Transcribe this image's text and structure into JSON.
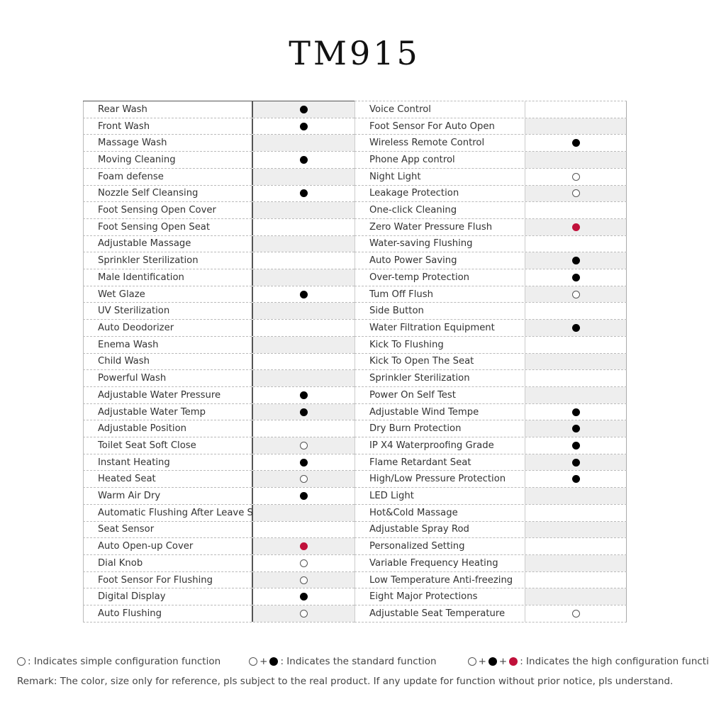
{
  "title": "TM915",
  "colors": {
    "filled": "#000000",
    "open": "#ffffff",
    "high": "#c0103a"
  },
  "left_column": [
    {
      "label": "Rear Wash",
      "mark": "filled"
    },
    {
      "label": "Front Wash",
      "mark": "filled"
    },
    {
      "label": "Massage Wash",
      "mark": ""
    },
    {
      "label": "Moving Cleaning",
      "mark": "filled"
    },
    {
      "label": "Foam defense",
      "mark": ""
    },
    {
      "label": "Nozzle Self Cleansing",
      "mark": "filled"
    },
    {
      "label": "Foot Sensing Open Cover",
      "mark": ""
    },
    {
      "label": "Foot Sensing Open Seat",
      "mark": ""
    },
    {
      "label": "Adjustable Massage",
      "mark": ""
    },
    {
      "label": "Sprinkler Sterilization",
      "mark": ""
    },
    {
      "label": "Male Identification",
      "mark": ""
    },
    {
      "label": "Wet Glaze",
      "mark": "filled"
    },
    {
      "label": "UV Sterilization",
      "mark": ""
    },
    {
      "label": "Auto Deodorizer",
      "mark": ""
    },
    {
      "label": "Enema Wash",
      "mark": ""
    },
    {
      "label": "Child Wash",
      "mark": ""
    },
    {
      "label": "Powerful Wash",
      "mark": ""
    },
    {
      "label": "Adjustable Water Pressure",
      "mark": "filled"
    },
    {
      "label": "Adjustable Water Temp",
      "mark": "filled"
    },
    {
      "label": "Adjustable Position",
      "mark": ""
    },
    {
      "label": "Toilet Seat Soft Close",
      "mark": "open"
    },
    {
      "label": "Instant Heating",
      "mark": "filled"
    },
    {
      "label": "Heated Seat",
      "mark": "open"
    },
    {
      "label": "Warm Air Dry",
      "mark": "filled"
    },
    {
      "label": "Automatic Flushing After Leave Seat",
      "mark": ""
    },
    {
      "label": "Seat Sensor",
      "mark": ""
    },
    {
      "label": "Auto Open-up Cover",
      "mark": "red"
    },
    {
      "label": "Dial Knob",
      "mark": "open"
    },
    {
      "label": "Foot Sensor For Flushing",
      "mark": "open"
    },
    {
      "label": "Digital Display",
      "mark": "filled"
    },
    {
      "label": "Auto Flushing",
      "mark": "open"
    }
  ],
  "right_column": [
    {
      "label": "Voice Control",
      "mark": ""
    },
    {
      "label": "Foot Sensor For Auto Open",
      "mark": ""
    },
    {
      "label": "Wireless Remote Control",
      "mark": "filled"
    },
    {
      "label": "Phone App control",
      "mark": ""
    },
    {
      "label": "Night Light",
      "mark": "open"
    },
    {
      "label": "Leakage Protection",
      "mark": "open"
    },
    {
      "label": "One-click Cleaning",
      "mark": ""
    },
    {
      "label": "Zero Water Pressure Flush",
      "mark": "red"
    },
    {
      "label": "Water-saving Flushing",
      "mark": ""
    },
    {
      "label": "Auto Power Saving",
      "mark": "filled"
    },
    {
      "label": "Over-temp Protection",
      "mark": "filled"
    },
    {
      "label": "Tum Off Flush",
      "mark": "open"
    },
    {
      "label": "Side Button",
      "mark": ""
    },
    {
      "label": "Water Filtration Equipment",
      "mark": "filled"
    },
    {
      "label": "Kick To Flushing",
      "mark": ""
    },
    {
      "label": "Kick To Open The Seat",
      "mark": ""
    },
    {
      "label": "Sprinkler Sterilization",
      "mark": ""
    },
    {
      "label": "Power On Self Test",
      "mark": ""
    },
    {
      "label": "Adjustable Wind Tempe",
      "mark": "filled"
    },
    {
      "label": "Dry Burn Protection",
      "mark": "filled"
    },
    {
      "label": "IP X4 Waterproofing Grade",
      "mark": "filled"
    },
    {
      "label": "Flame Retardant Seat",
      "mark": "filled"
    },
    {
      "label": "High/Low Pressure Protection",
      "mark": "filled"
    },
    {
      "label": "LED Light",
      "mark": ""
    },
    {
      "label": "Hot&Cold Massage",
      "mark": ""
    },
    {
      "label": "Adjustable Spray Rod",
      "mark": ""
    },
    {
      "label": "Personalized Setting",
      "mark": ""
    },
    {
      "label": "Variable Frequency Heating",
      "mark": ""
    },
    {
      "label": "Low Temperature Anti-freezing",
      "mark": ""
    },
    {
      "label": "Eight Major Protections",
      "mark": ""
    },
    {
      "label": "Adjustable Seat Temperature",
      "mark": "open"
    }
  ],
  "legend": {
    "simple": ": Indicates simple configuration function",
    "standard_plus": "+",
    "standard": ": Indicates the standard function",
    "high_plus": "+",
    "high": ": Indicates the high configuration function"
  },
  "remark": "Remark: The color, size only for reference, pls subject to the real product. If any update for function without prior notice, pls understand."
}
